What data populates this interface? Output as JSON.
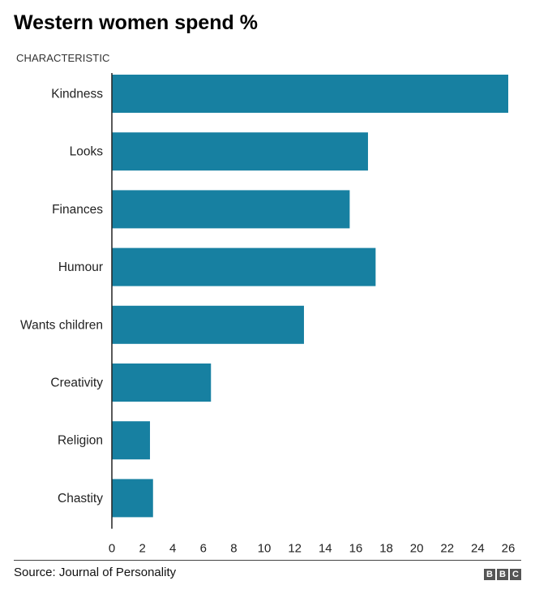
{
  "chart_data": {
    "type": "bar",
    "orientation": "horizontal",
    "title": "Western women spend %",
    "ylabel": "CHARACTERISTIC",
    "xlabel": "",
    "categories": [
      "Kindness",
      "Looks",
      "Finances",
      "Humour",
      "Wants children",
      "Creativity",
      "Religion",
      "Chastity"
    ],
    "values": [
      26,
      16.8,
      15.6,
      17.3,
      12.6,
      6.5,
      2.5,
      2.7
    ],
    "xlim": [
      0,
      26
    ],
    "xticks": [
      0,
      2,
      4,
      6,
      8,
      10,
      12,
      14,
      16,
      18,
      20,
      22,
      24,
      26
    ],
    "bar_color": "#1780a1",
    "grid": false
  },
  "footer": {
    "source": "Source: Journal of Personality",
    "logo_letters": [
      "B",
      "B",
      "C"
    ]
  }
}
